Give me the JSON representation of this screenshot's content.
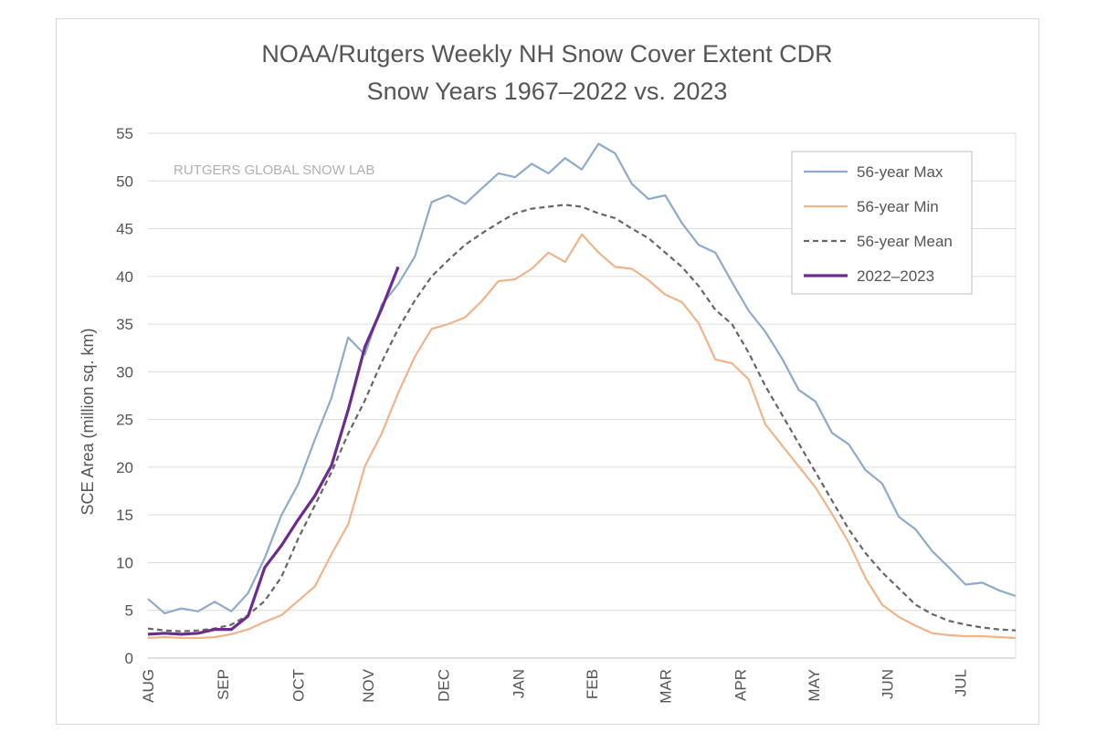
{
  "chart_data": {
    "type": "line",
    "title": "NOAA/Rutgers Weekly NH Snow Cover Extent CDR",
    "subtitle": "Snow Years 1967–2022 vs. 2023",
    "ylabel": "SCE Area (million sq. km)",
    "xlabel": "",
    "watermark": "RUTGERS GLOBAL SNOW LAB",
    "ylim": [
      0,
      55
    ],
    "yticks": [
      0,
      5,
      10,
      15,
      20,
      25,
      30,
      35,
      40,
      45,
      50,
      55
    ],
    "xlim": [
      0,
      52
    ],
    "x_unit": "week of snow year (0 = start of AUG)",
    "month_labels": [
      "AUG",
      "SEP",
      "OCT",
      "NOV",
      "DEC",
      "JAN",
      "FEB",
      "MAR",
      "APR",
      "MAY",
      "JUN",
      "JUL"
    ],
    "month_positions": [
      0,
      4.5,
      9,
      13.2,
      17.7,
      22.2,
      26.6,
      31,
      35.5,
      39.9,
      44.3,
      48.7
    ],
    "grid": true,
    "legend_position": "top-right",
    "series": [
      {
        "name": "56-year Max",
        "color": "#8eaacc",
        "style": "solid",
        "x": [
          0,
          1,
          2,
          3,
          4,
          5,
          6,
          7,
          8,
          9,
          10,
          11,
          12,
          13,
          14,
          15,
          16,
          17,
          18,
          19,
          20,
          21,
          22,
          23,
          24,
          25,
          26,
          27,
          28,
          29,
          30,
          31,
          32,
          33,
          34,
          35,
          36,
          37,
          38,
          39,
          40,
          41,
          42,
          43,
          44,
          45,
          46,
          47,
          48,
          49,
          50,
          51,
          52
        ],
        "values": [
          6.2,
          4.7,
          5.2,
          4.9,
          5.9,
          4.9,
          6.8,
          10.5,
          15.0,
          18.2,
          22.9,
          27.3,
          33.6,
          31.8,
          37.0,
          39.2,
          42.1,
          47.8,
          48.5,
          47.6,
          49.2,
          50.8,
          50.4,
          51.8,
          50.8,
          52.4,
          51.2,
          53.9,
          52.9,
          49.7,
          48.1,
          48.5,
          45.6,
          43.3,
          42.5,
          39.4,
          36.4,
          34.2,
          31.4,
          28.1,
          26.9,
          23.6,
          22.4,
          19.7,
          18.3,
          14.8,
          13.5,
          11.2,
          9.5,
          7.7,
          7.9,
          7.1,
          6.5
        ]
      },
      {
        "name": "56-year Min",
        "color": "#f0b48a",
        "style": "solid",
        "x": [
          0,
          1,
          2,
          3,
          4,
          5,
          6,
          7,
          8,
          9,
          10,
          11,
          12,
          13,
          14,
          15,
          16,
          17,
          18,
          19,
          20,
          21,
          22,
          23,
          24,
          25,
          26,
          27,
          28,
          29,
          30,
          31,
          32,
          33,
          34,
          35,
          36,
          37,
          38,
          39,
          40,
          41,
          42,
          43,
          44,
          45,
          46,
          47,
          48,
          49,
          50,
          51,
          52
        ],
        "values": [
          2.1,
          2.2,
          2.1,
          2.1,
          2.2,
          2.5,
          3.0,
          3.8,
          4.5,
          6.0,
          7.5,
          10.9,
          14.0,
          20.1,
          23.5,
          27.8,
          31.6,
          34.5,
          35.0,
          35.7,
          37.4,
          39.5,
          39.7,
          40.8,
          42.5,
          41.5,
          44.4,
          42.5,
          41.0,
          40.8,
          39.6,
          38.1,
          37.3,
          35.1,
          31.3,
          30.9,
          29.2,
          24.5,
          22.3,
          20.1,
          17.9,
          15.1,
          12.1,
          8.4,
          5.6,
          4.3,
          3.4,
          2.6,
          2.4,
          2.3,
          2.3,
          2.2,
          2.1
        ]
      },
      {
        "name": "56-year Mean",
        "color": "#666666",
        "style": "dashed",
        "x": [
          0,
          1,
          2,
          3,
          4,
          5,
          6,
          7,
          8,
          9,
          10,
          11,
          12,
          13,
          14,
          15,
          16,
          17,
          18,
          19,
          20,
          21,
          22,
          23,
          24,
          25,
          26,
          27,
          28,
          29,
          30,
          31,
          32,
          33,
          34,
          35,
          36,
          37,
          38,
          39,
          40,
          41,
          42,
          43,
          44,
          45,
          46,
          47,
          48,
          49,
          50,
          51,
          52
        ],
        "values": [
          3.1,
          2.9,
          2.8,
          2.9,
          3.1,
          3.5,
          4.5,
          6.0,
          8.5,
          12.5,
          16.0,
          19.5,
          23.5,
          27.0,
          31.0,
          34.5,
          37.5,
          40.0,
          41.7,
          43.3,
          44.5,
          45.6,
          46.6,
          47.1,
          47.3,
          47.5,
          47.3,
          46.6,
          46.1,
          45.0,
          44.0,
          42.5,
          41.0,
          39.0,
          36.5,
          35.0,
          32.0,
          28.5,
          25.5,
          22.5,
          19.5,
          16.5,
          13.5,
          11.0,
          9.0,
          7.3,
          5.6,
          4.6,
          3.9,
          3.5,
          3.2,
          3.0,
          2.9
        ]
      },
      {
        "name": "2022–2023",
        "color": "#6b2c8f",
        "style": "solid",
        "x": [
          0,
          1,
          2,
          3,
          4,
          5,
          6,
          7,
          8,
          9,
          10,
          11,
          12,
          13,
          14,
          15
        ],
        "values": [
          2.5,
          2.6,
          2.5,
          2.6,
          3.0,
          3.0,
          4.4,
          9.5,
          11.8,
          14.5,
          17.0,
          20.2,
          26.0,
          32.6,
          36.6,
          41.0
        ]
      }
    ]
  }
}
